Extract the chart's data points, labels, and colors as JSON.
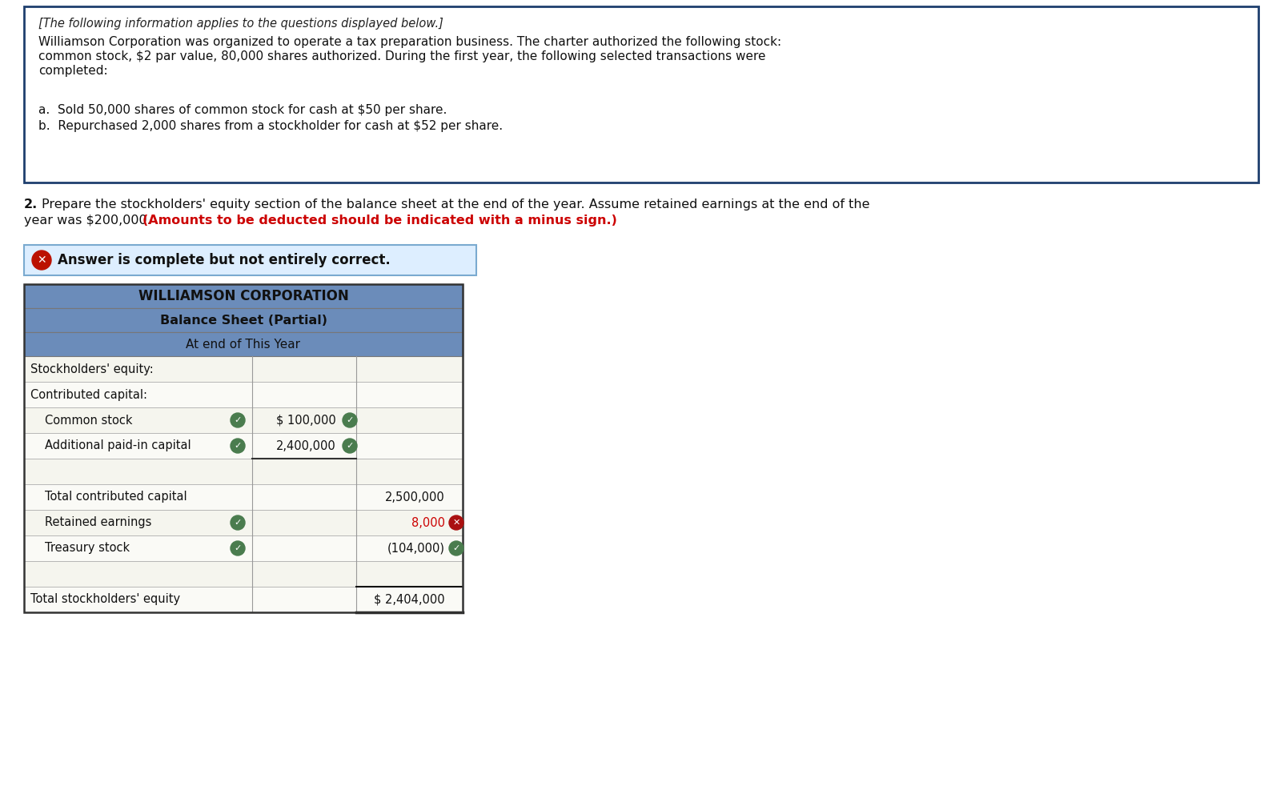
{
  "bg_color": "#ffffff",
  "box_border_color": "#1e3f6e",
  "header_bg": "#6b8cba",
  "answer_banner_bg": "#ddeeff",
  "answer_banner_border": "#7aaad0",
  "green_check_color": "#4a7c4e",
  "red_x_color": "#aa1111",
  "red_text_color": "#cc0000",
  "intro_text": "[The following information applies to the questions displayed below.]",
  "body_line1": "Williamson Corporation was organized to operate a tax preparation business. The charter authorized the following stock:",
  "body_line2": "common stock, $2 par value, 80,000 shares authorized. During the first year, the following selected transactions were",
  "body_line3": "completed:",
  "item_a": "a.  Sold 50,000 shares of common stock for cash at $50 per share.",
  "item_b": "b.  Repurchased 2,000 shares from a stockholder for cash at $52 per share.",
  "q2_part1": "2. Prepare the stockholders' equity section of the balance sheet at the end of the year. Assume retained earnings at the end of the",
  "q2_part2": "year was $200,000.",
  "q2_red": "(Amounts to be deducted should be indicated with a minus sign.)",
  "answer_banner_text": "Answer is complete but not entirely correct.",
  "corp_name": "WILLIAMSON CORPORATION",
  "sheet_title": "Balance Sheet (Partial)",
  "sheet_subtitle": "At end of This Year",
  "rows": [
    {
      "label": "Stockholders' equity:",
      "col1": "",
      "col2": "",
      "indent": 0,
      "check_col0": false,
      "check_col1": false,
      "check_col2": false,
      "x_col2": false
    },
    {
      "label": "Contributed capital:",
      "col1": "",
      "col2": "",
      "indent": 0,
      "check_col0": false,
      "check_col1": false,
      "check_col2": false,
      "x_col2": false
    },
    {
      "label": "Common stock",
      "col1": "$ 100,000",
      "col2": "",
      "indent": 1,
      "check_col0": true,
      "check_col1": true,
      "check_col2": false,
      "x_col2": false
    },
    {
      "label": "Additional paid-in capital",
      "col1": "2,400,000",
      "col2": "",
      "indent": 1,
      "check_col0": true,
      "check_col1": true,
      "check_col2": false,
      "x_col2": false
    },
    {
      "label": "",
      "col1": "",
      "col2": "",
      "indent": 0,
      "check_col0": false,
      "check_col1": false,
      "check_col2": false,
      "x_col2": false,
      "spacer": true
    },
    {
      "label": "Total contributed capital",
      "col1": "",
      "col2": "2,500,000",
      "indent": 1,
      "check_col0": false,
      "check_col1": false,
      "check_col2": false,
      "x_col2": false
    },
    {
      "label": "Retained earnings",
      "col1": "",
      "col2": "8,000",
      "indent": 1,
      "check_col0": true,
      "check_col1": false,
      "check_col2": false,
      "x_col2": true
    },
    {
      "label": "Treasury stock",
      "col1": "",
      "col2": "(104,000)",
      "indent": 1,
      "check_col0": true,
      "check_col1": false,
      "check_col2": true,
      "x_col2": false
    },
    {
      "label": "",
      "col1": "",
      "col2": "",
      "indent": 0,
      "check_col0": false,
      "check_col1": false,
      "check_col2": false,
      "x_col2": false,
      "spacer": true
    },
    {
      "label": "Total stockholders' equity",
      "col1": "",
      "col2": "$ 2,404,000",
      "indent": 0,
      "check_col0": false,
      "check_col1": false,
      "check_col2": false,
      "x_col2": false,
      "total_row": true
    }
  ]
}
